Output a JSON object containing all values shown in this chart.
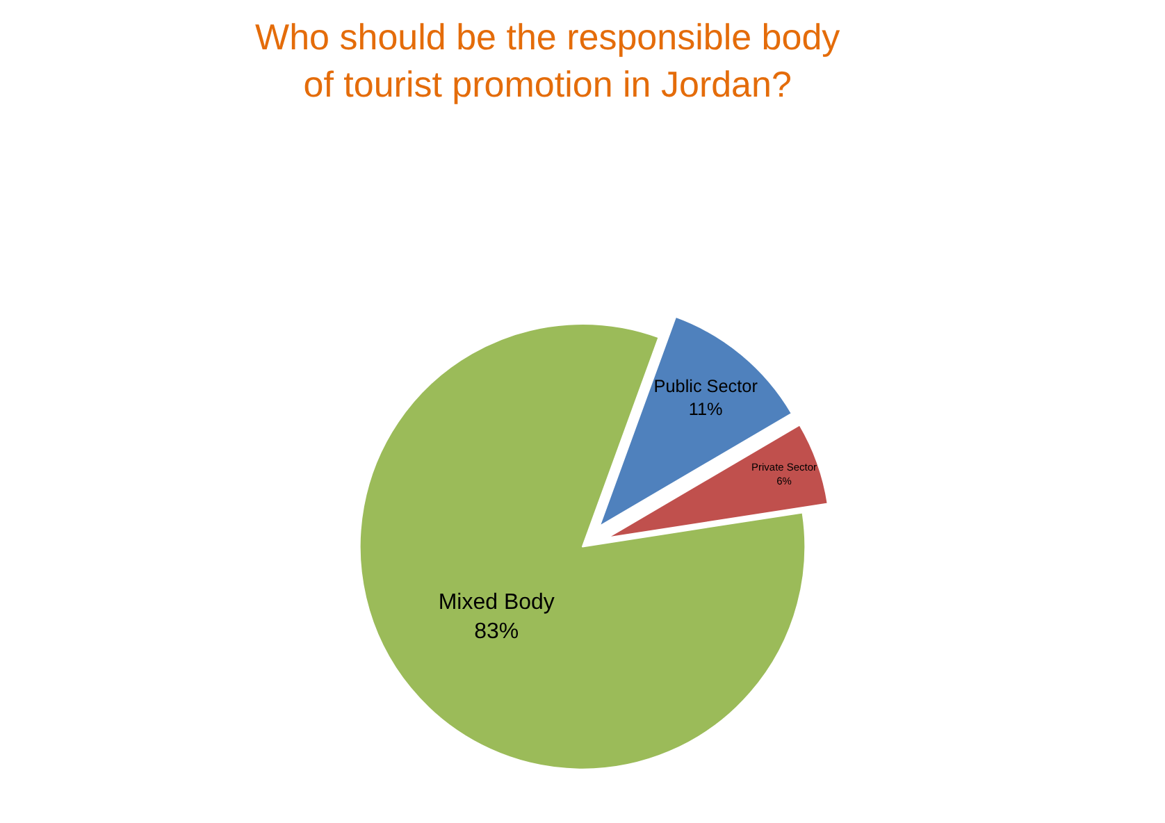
{
  "chart_data": {
    "type": "pie",
    "title": "Who should be the responsible body of tourist promotion in Jordan?",
    "categories": [
      "Public Sector",
      "Private Sector",
      "Mixed Body"
    ],
    "values": [
      11,
      6,
      83
    ],
    "value_labels": [
      "11%",
      "6%",
      "83%"
    ],
    "colors": [
      "#4f81bd",
      "#c0504d",
      "#9bbb59"
    ],
    "legend": false
  }
}
